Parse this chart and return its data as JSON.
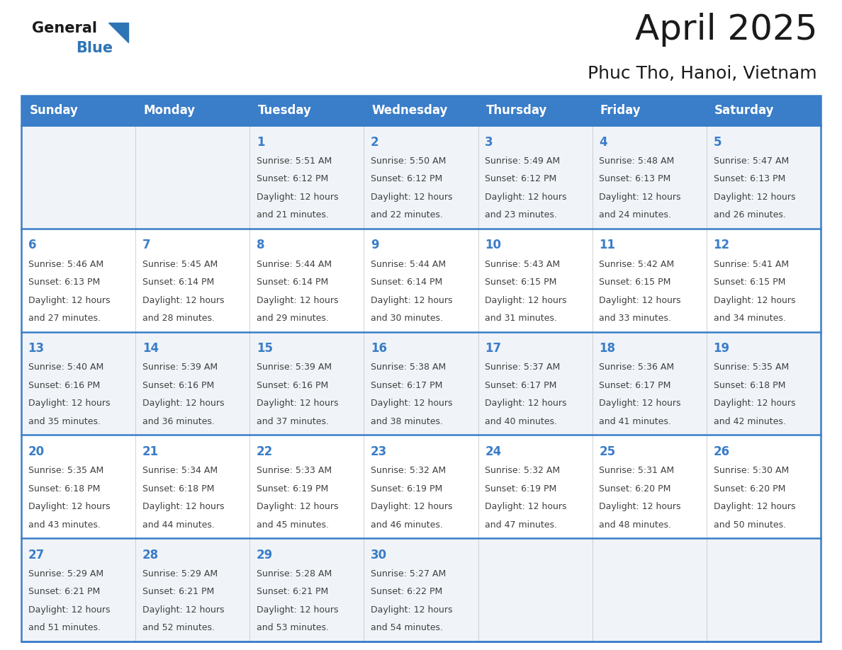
{
  "title": "April 2025",
  "subtitle": "Phuc Tho, Hanoi, Vietnam",
  "header_bg": "#3A7DC9",
  "header_text_color": "#FFFFFF",
  "days_of_week": [
    "Sunday",
    "Monday",
    "Tuesday",
    "Wednesday",
    "Thursday",
    "Friday",
    "Saturday"
  ],
  "cell_bg_light": "#F0F4F8",
  "cell_bg_white": "#FFFFFF",
  "cell_border_color": "#3A7DC9",
  "row_border_color": "#3A7DC9",
  "day_number_color": "#3A7DC9",
  "content_text_color": "#404040",
  "calendar": [
    [
      {
        "day": null,
        "sunrise": null,
        "sunset": null,
        "daylight": null
      },
      {
        "day": null,
        "sunrise": null,
        "sunset": null,
        "daylight": null
      },
      {
        "day": 1,
        "sunrise": "5:51 AM",
        "sunset": "6:12 PM",
        "daylight": "12 hours and 21 minutes."
      },
      {
        "day": 2,
        "sunrise": "5:50 AM",
        "sunset": "6:12 PM",
        "daylight": "12 hours and 22 minutes."
      },
      {
        "day": 3,
        "sunrise": "5:49 AM",
        "sunset": "6:12 PM",
        "daylight": "12 hours and 23 minutes."
      },
      {
        "day": 4,
        "sunrise": "5:48 AM",
        "sunset": "6:13 PM",
        "daylight": "12 hours and 24 minutes."
      },
      {
        "day": 5,
        "sunrise": "5:47 AM",
        "sunset": "6:13 PM",
        "daylight": "12 hours and 26 minutes."
      }
    ],
    [
      {
        "day": 6,
        "sunrise": "5:46 AM",
        "sunset": "6:13 PM",
        "daylight": "12 hours and 27 minutes."
      },
      {
        "day": 7,
        "sunrise": "5:45 AM",
        "sunset": "6:14 PM",
        "daylight": "12 hours and 28 minutes."
      },
      {
        "day": 8,
        "sunrise": "5:44 AM",
        "sunset": "6:14 PM",
        "daylight": "12 hours and 29 minutes."
      },
      {
        "day": 9,
        "sunrise": "5:44 AM",
        "sunset": "6:14 PM",
        "daylight": "12 hours and 30 minutes."
      },
      {
        "day": 10,
        "sunrise": "5:43 AM",
        "sunset": "6:15 PM",
        "daylight": "12 hours and 31 minutes."
      },
      {
        "day": 11,
        "sunrise": "5:42 AM",
        "sunset": "6:15 PM",
        "daylight": "12 hours and 33 minutes."
      },
      {
        "day": 12,
        "sunrise": "5:41 AM",
        "sunset": "6:15 PM",
        "daylight": "12 hours and 34 minutes."
      }
    ],
    [
      {
        "day": 13,
        "sunrise": "5:40 AM",
        "sunset": "6:16 PM",
        "daylight": "12 hours and 35 minutes."
      },
      {
        "day": 14,
        "sunrise": "5:39 AM",
        "sunset": "6:16 PM",
        "daylight": "12 hours and 36 minutes."
      },
      {
        "day": 15,
        "sunrise": "5:39 AM",
        "sunset": "6:16 PM",
        "daylight": "12 hours and 37 minutes."
      },
      {
        "day": 16,
        "sunrise": "5:38 AM",
        "sunset": "6:17 PM",
        "daylight": "12 hours and 38 minutes."
      },
      {
        "day": 17,
        "sunrise": "5:37 AM",
        "sunset": "6:17 PM",
        "daylight": "12 hours and 40 minutes."
      },
      {
        "day": 18,
        "sunrise": "5:36 AM",
        "sunset": "6:17 PM",
        "daylight": "12 hours and 41 minutes."
      },
      {
        "day": 19,
        "sunrise": "5:35 AM",
        "sunset": "6:18 PM",
        "daylight": "12 hours and 42 minutes."
      }
    ],
    [
      {
        "day": 20,
        "sunrise": "5:35 AM",
        "sunset": "6:18 PM",
        "daylight": "12 hours and 43 minutes."
      },
      {
        "day": 21,
        "sunrise": "5:34 AM",
        "sunset": "6:18 PM",
        "daylight": "12 hours and 44 minutes."
      },
      {
        "day": 22,
        "sunrise": "5:33 AM",
        "sunset": "6:19 PM",
        "daylight": "12 hours and 45 minutes."
      },
      {
        "day": 23,
        "sunrise": "5:32 AM",
        "sunset": "6:19 PM",
        "daylight": "12 hours and 46 minutes."
      },
      {
        "day": 24,
        "sunrise": "5:32 AM",
        "sunset": "6:19 PM",
        "daylight": "12 hours and 47 minutes."
      },
      {
        "day": 25,
        "sunrise": "5:31 AM",
        "sunset": "6:20 PM",
        "daylight": "12 hours and 48 minutes."
      },
      {
        "day": 26,
        "sunrise": "5:30 AM",
        "sunset": "6:20 PM",
        "daylight": "12 hours and 50 minutes."
      }
    ],
    [
      {
        "day": 27,
        "sunrise": "5:29 AM",
        "sunset": "6:21 PM",
        "daylight": "12 hours and 51 minutes."
      },
      {
        "day": 28,
        "sunrise": "5:29 AM",
        "sunset": "6:21 PM",
        "daylight": "12 hours and 52 minutes."
      },
      {
        "day": 29,
        "sunrise": "5:28 AM",
        "sunset": "6:21 PM",
        "daylight": "12 hours and 53 minutes."
      },
      {
        "day": 30,
        "sunrise": "5:27 AM",
        "sunset": "6:22 PM",
        "daylight": "12 hours and 54 minutes."
      },
      {
        "day": null,
        "sunrise": null,
        "sunset": null,
        "daylight": null
      },
      {
        "day": null,
        "sunrise": null,
        "sunset": null,
        "daylight": null
      },
      {
        "day": null,
        "sunrise": null,
        "sunset": null,
        "daylight": null
      }
    ]
  ],
  "logo_general_color": "#1a1a1a",
  "logo_blue_color": "#2E75B6",
  "title_fontsize": 36,
  "subtitle_fontsize": 18,
  "header_fontsize": 12,
  "day_number_fontsize": 12,
  "content_fontsize": 9.0,
  "fig_width": 11.88,
  "fig_height": 9.18,
  "dpi": 100
}
